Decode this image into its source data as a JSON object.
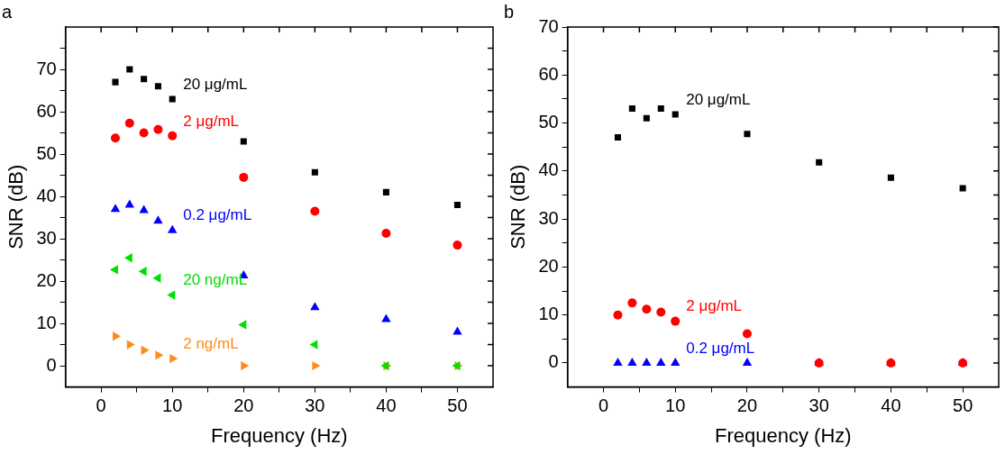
{
  "chart_data": [
    {
      "type": "scatter",
      "title": "a",
      "xlabel": "Frequency (Hz)",
      "ylabel": "SNR (dB)",
      "x": [
        2,
        4,
        6,
        8,
        10,
        20,
        30,
        40,
        50
      ],
      "series": [
        {
          "name": "20 μg/mL",
          "color": "#000000",
          "marker": "square",
          "values": [
            67,
            70,
            67.7,
            66,
            63,
            53,
            45.7,
            41,
            38
          ]
        },
        {
          "name": "2 μg/mL",
          "color": "#ff0000",
          "marker": "circle",
          "values": [
            53.8,
            57.3,
            55,
            55.8,
            54.3,
            44.5,
            36.5,
            31.3,
            28.5
          ]
        },
        {
          "name": "0.2 μg/mL",
          "color": "#0000ff",
          "marker": "triangle",
          "values": [
            37,
            38,
            36.7,
            34.2,
            32,
            21.3,
            13.8,
            11,
            8
          ]
        },
        {
          "name": "20 ng/mL",
          "color": "#00e000",
          "marker": "triangle-left",
          "values": [
            22.7,
            25.5,
            22.3,
            20.7,
            16.7,
            9.7,
            5,
            0,
            0
          ]
        },
        {
          "name": "2 ng/mL",
          "color": "#ff8c1a",
          "marker": "triangle-right",
          "values": [
            7,
            5,
            3.7,
            2.5,
            1.7,
            0,
            0,
            0,
            0
          ]
        }
      ],
      "xlim": [
        -5,
        55
      ],
      "ylim": [
        -5,
        80
      ],
      "xticks": [
        0,
        {
          "value": 5,
          "label": null
        },
        10,
        {
          "value": 15,
          "label": null
        },
        20,
        {
          "value": 25,
          "label": null
        },
        30,
        {
          "value": 35,
          "label": null
        },
        40,
        {
          "value": 45,
          "label": null
        },
        50
      ],
      "yticks": [
        0,
        {
          "value": 5,
          "label": null
        },
        10,
        {
          "value": 15,
          "label": null
        },
        20,
        {
          "value": 25,
          "label": null
        },
        30,
        {
          "value": 35,
          "label": null
        },
        40,
        {
          "value": 45,
          "label": null
        },
        50,
        {
          "value": 55,
          "label": null
        },
        60,
        {
          "value": 65,
          "label": null
        },
        70,
        {
          "value": 75,
          "label": null
        }
      ],
      "grid": false,
      "legend": false
    },
    {
      "type": "scatter",
      "title": "b",
      "xlabel": "Frequency (Hz)",
      "ylabel": "SNR (dB)",
      "x": [
        2,
        4,
        6,
        8,
        10,
        20,
        30,
        40,
        50
      ],
      "series": [
        {
          "name": "20 μg/mL",
          "color": "#000000",
          "marker": "square",
          "values": [
            47,
            53,
            51,
            53,
            51.8,
            47.7,
            41.8,
            38.6,
            36.4
          ]
        },
        {
          "name": "2 μg/mL",
          "color": "#ff0000",
          "marker": "circle",
          "values": [
            10,
            12.5,
            11.2,
            10.6,
            8.7,
            6.1,
            0,
            0,
            0
          ]
        },
        {
          "name": "0.2 μg/mL",
          "color": "#0000ff",
          "marker": "triangle",
          "values": [
            0,
            0,
            0,
            0,
            0,
            0,
            0,
            0,
            0
          ]
        }
      ],
      "xlim": [
        -5,
        55
      ],
      "ylim": [
        -5,
        70
      ],
      "xticks": [
        0,
        {
          "value": 5,
          "label": null
        },
        10,
        {
          "value": 15,
          "label": null
        },
        20,
        {
          "value": 25,
          "label": null
        },
        30,
        {
          "value": 35,
          "label": null
        },
        40,
        {
          "value": 45,
          "label": null
        },
        50
      ],
      "yticks": [
        0,
        {
          "value": 5,
          "label": null
        },
        10,
        {
          "value": 15,
          "label": null
        },
        20,
        {
          "value": 25,
          "label": null
        },
        30,
        {
          "value": 35,
          "label": null
        },
        40,
        {
          "value": 45,
          "label": null
        },
        50,
        {
          "value": 55,
          "label": null
        },
        60,
        {
          "value": 65,
          "label": null
        },
        70
      ],
      "grid": false,
      "legend": false
    }
  ]
}
